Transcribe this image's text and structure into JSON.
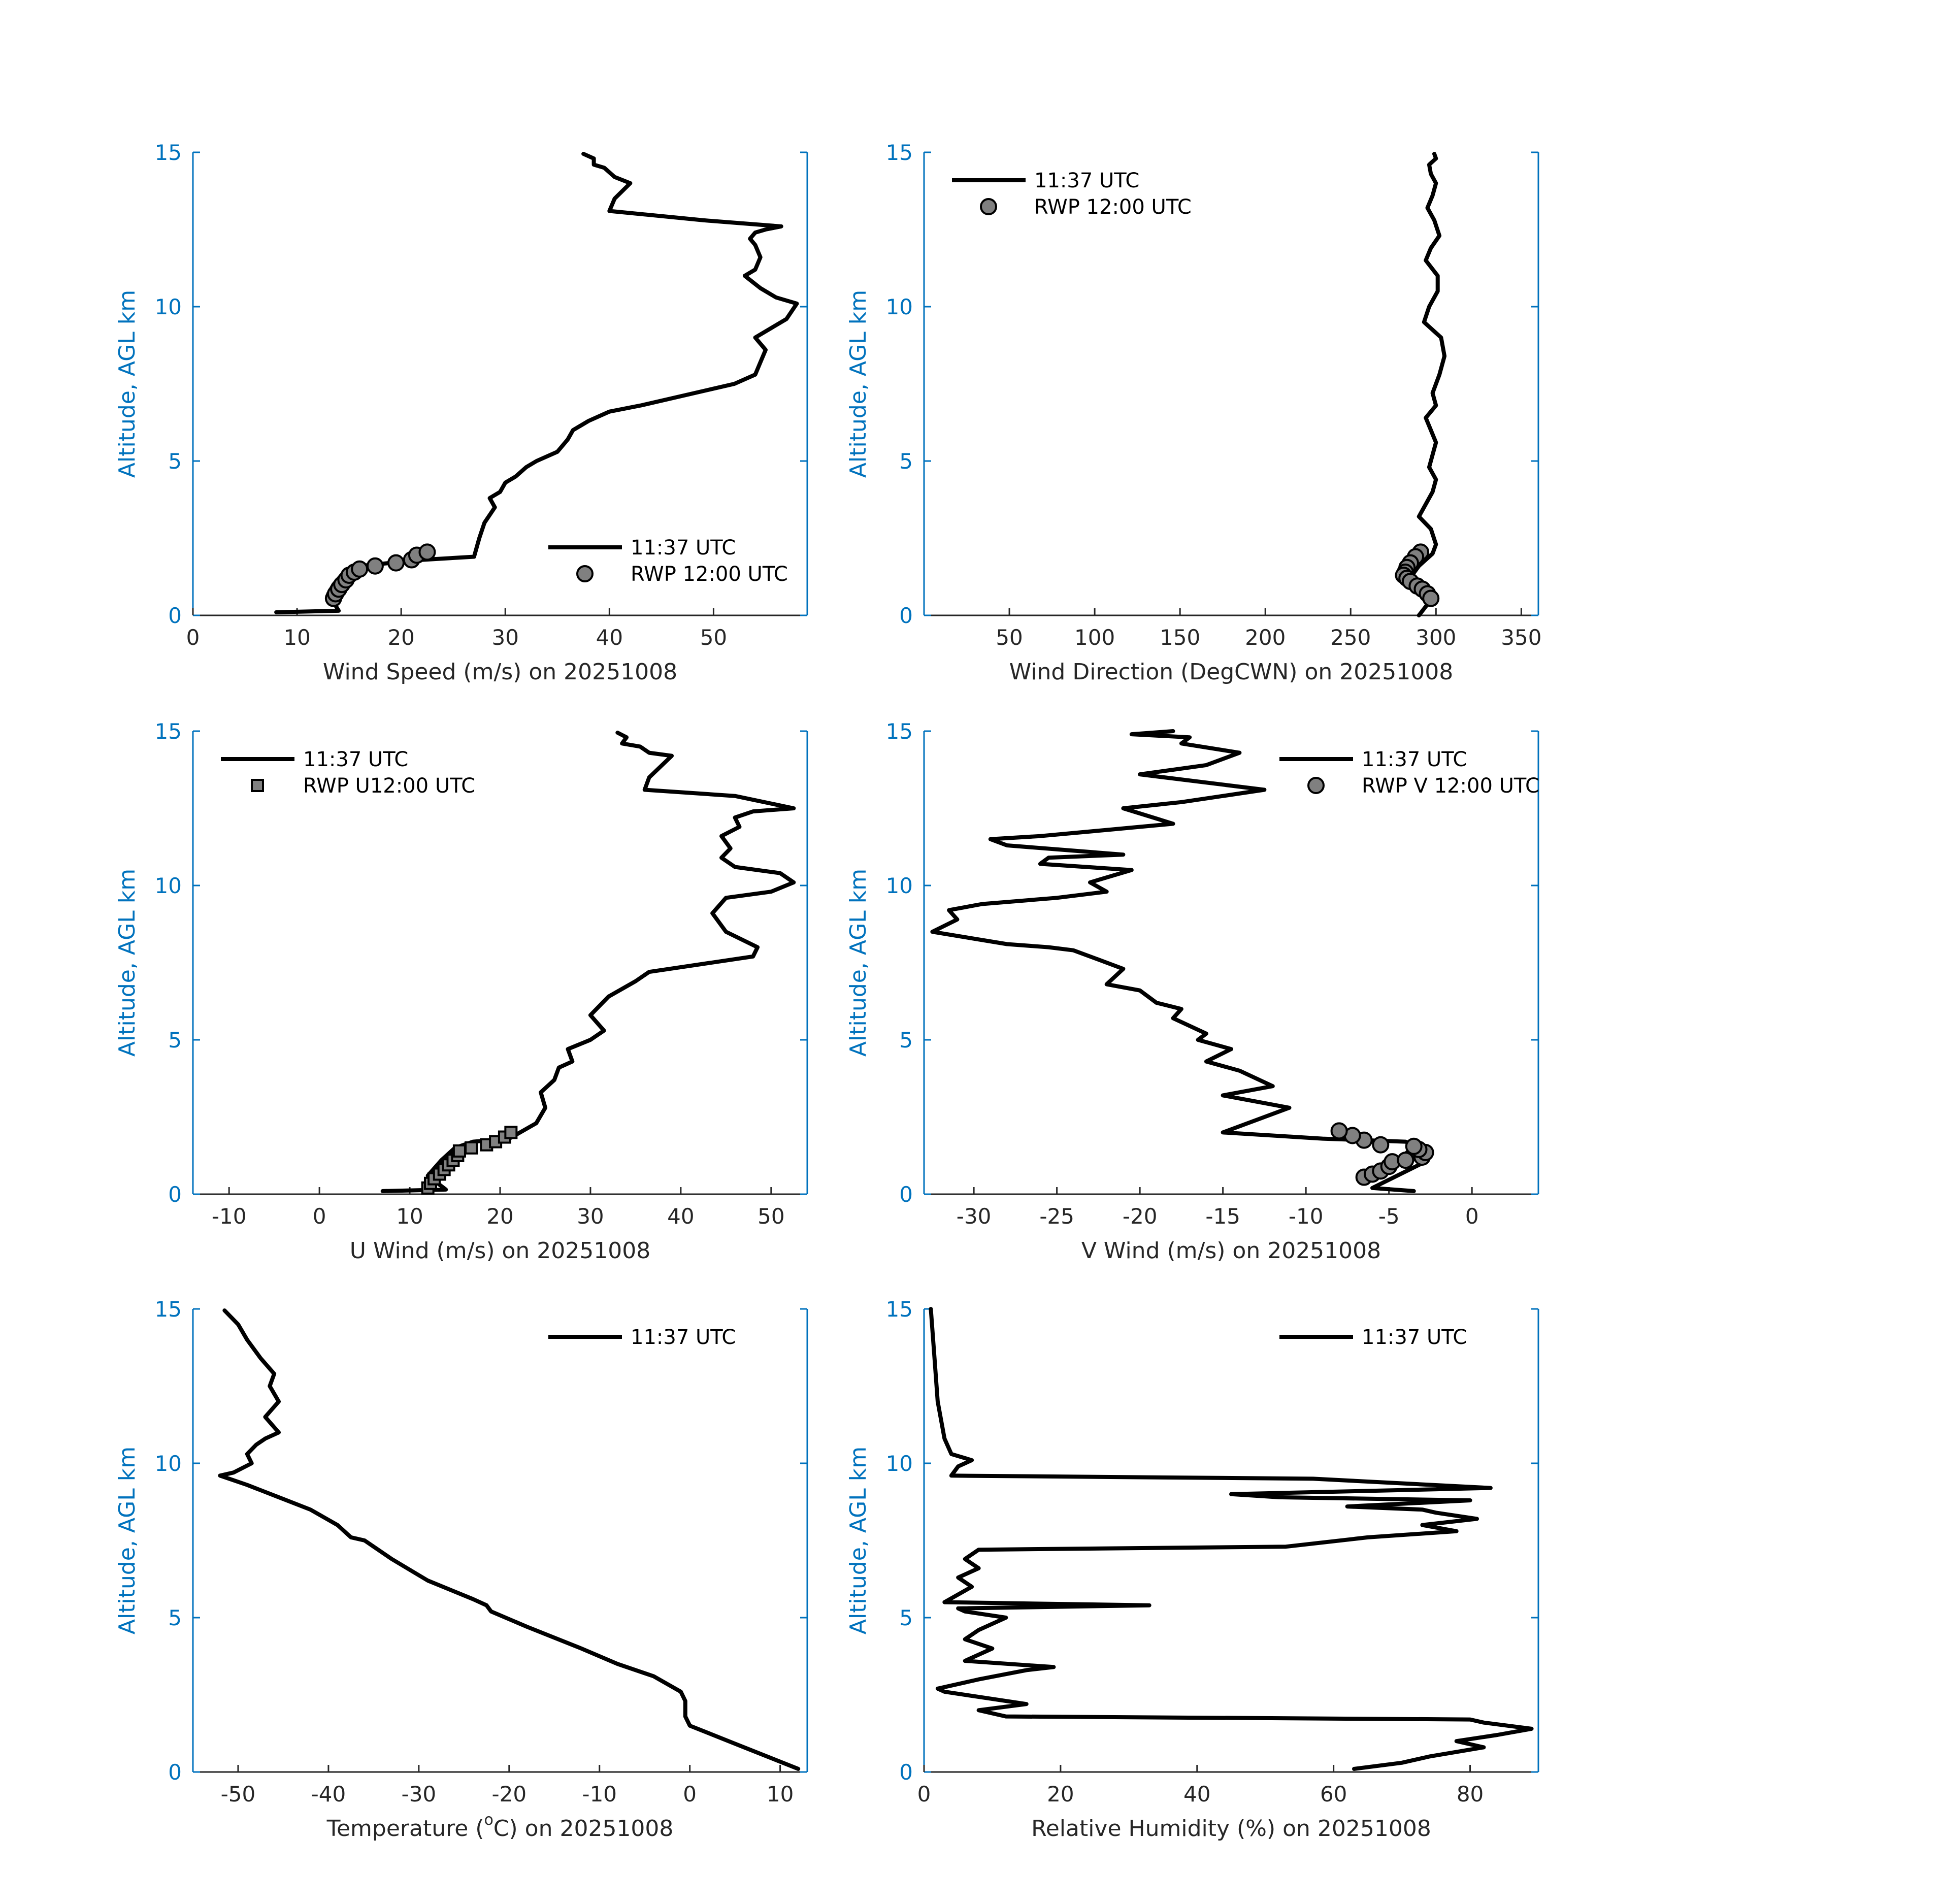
{
  "colors": {
    "axis_y": "#0072BD",
    "axis_x": "#262626",
    "profile_line": "#000000",
    "rwp_marker_fill": "#808080"
  },
  "chart_data": [
    {
      "type": "line",
      "xlabel": "Wind Speed (m/s) on 20251008",
      "ylabel": "Altitude, AGL km",
      "xlim": [
        0,
        59
      ],
      "ylim": [
        0,
        15
      ],
      "xticks": [
        0,
        10,
        20,
        30,
        40,
        50
      ],
      "yticks": [
        0,
        5,
        10,
        15
      ],
      "legend": "bottom-right",
      "series": [
        {
          "name": "11:37 UTC",
          "kind": "line",
          "x": [
            8,
            14,
            13,
            13.5,
            14.5,
            16,
            22,
            27,
            27.5,
            28,
            29,
            28.5,
            29.5,
            30,
            31,
            32,
            33,
            35,
            36,
            36.5,
            38,
            40,
            43,
            52,
            54,
            54.5,
            55,
            54,
            57,
            58,
            56,
            54.5,
            53,
            54,
            54.5,
            54,
            53.5,
            54,
            55,
            56.5,
            49,
            40,
            40.5,
            42,
            40.5,
            39.5,
            38.5,
            38.5,
            37.5
          ],
          "y": [
            0.1,
            0.15,
            0.7,
            1,
            1.4,
            1.6,
            1.8,
            1.9,
            2.5,
            3.0,
            3.5,
            3.8,
            4.0,
            4.3,
            4.5,
            4.8,
            5.0,
            5.3,
            5.7,
            6.0,
            6.3,
            6.6,
            6.8,
            7.5,
            7.8,
            8.2,
            8.6,
            9.0,
            9.6,
            10.1,
            10.3,
            10.6,
            11.0,
            11.2,
            11.6,
            12.0,
            12.2,
            12.4,
            12.5,
            12.6,
            12.8,
            13.1,
            13.5,
            14.0,
            14.2,
            14.5,
            14.6,
            14.8,
            14.95
          ]
        },
        {
          "name": "RWP 12:00 UTC",
          "kind": "circle",
          "x": [
            13.5,
            13.7,
            14,
            14.3,
            14.7,
            15,
            15.5,
            16,
            17.5,
            19.5,
            21,
            21.5,
            22.5
          ],
          "y": [
            0.55,
            0.7,
            0.85,
            1.0,
            1.15,
            1.3,
            1.4,
            1.5,
            1.6,
            1.7,
            1.8,
            1.95,
            2.05
          ]
        }
      ]
    },
    {
      "type": "line",
      "xlabel": "Wind Direction (DegCWN) on 20251008",
      "ylabel": "Altitude, AGL km",
      "xlim": [
        0,
        360
      ],
      "ylim": [
        0,
        15
      ],
      "xticks": [
        50,
        100,
        150,
        200,
        250,
        300,
        350
      ],
      "yticks": [
        0,
        5,
        10,
        15
      ],
      "legend": "top-left",
      "series": [
        {
          "name": "11:37 UTC",
          "kind": "line",
          "x": [
            290,
            297,
            293,
            286,
            290,
            298,
            300,
            297,
            290,
            294,
            298,
            300,
            296,
            298,
            300,
            297,
            294,
            300,
            298,
            302,
            305,
            303,
            293,
            296,
            301,
            301,
            294,
            297,
            302,
            299,
            295,
            298,
            300,
            297,
            296,
            300,
            299
          ],
          "y": [
            0,
            0.5,
            1.0,
            1.3,
            1.6,
            2.0,
            2.3,
            2.8,
            3.2,
            3.6,
            4.0,
            4.4,
            4.8,
            5.2,
            5.6,
            6.0,
            6.4,
            6.8,
            7.2,
            7.8,
            8.4,
            9.0,
            9.5,
            10.0,
            10.5,
            11.0,
            11.5,
            11.9,
            12.3,
            12.8,
            13.2,
            13.6,
            14.0,
            14.3,
            14.6,
            14.8,
            14.95
          ]
        },
        {
          "name": "RWP 12:00 UTC",
          "kind": "circle",
          "x": [
            291,
            288,
            285,
            283,
            282,
            281,
            283,
            285,
            289,
            292,
            295,
            297
          ],
          "y": [
            2.05,
            1.9,
            1.7,
            1.55,
            1.4,
            1.3,
            1.2,
            1.1,
            0.95,
            0.85,
            0.7,
            0.55
          ]
        }
      ]
    },
    {
      "type": "line",
      "xlabel": "U Wind (m/s) on 20251008",
      "ylabel": "Altitude, AGL km",
      "xlim": [
        -14,
        54
      ],
      "ylim": [
        0,
        15
      ],
      "xticks": [
        -10,
        0,
        10,
        20,
        30,
        40,
        50
      ],
      "yticks": [
        0,
        5,
        10,
        15
      ],
      "legend": "top-left",
      "series": [
        {
          "name": "11:37 UTC",
          "kind": "line",
          "x": [
            7,
            14,
            12,
            13.5,
            15,
            17,
            21,
            24,
            25,
            24.5,
            26,
            26.5,
            28,
            27.5,
            30,
            31.5,
            30,
            32,
            35,
            36.5,
            48,
            48.5,
            45,
            43.5,
            45,
            50,
            52.5,
            51,
            46,
            44.5,
            45.5,
            44.5,
            46.5,
            46,
            48,
            52.5,
            46,
            36,
            36.5,
            39,
            36.5,
            35.5,
            33.5,
            34,
            33
          ],
          "y": [
            0.1,
            0.15,
            0.6,
            1.1,
            1.5,
            1.7,
            1.8,
            2.3,
            2.8,
            3.3,
            3.7,
            4.1,
            4.3,
            4.7,
            5.0,
            5.3,
            5.8,
            6.4,
            6.9,
            7.2,
            7.7,
            8.0,
            8.5,
            9.1,
            9.6,
            9.8,
            10.1,
            10.4,
            10.6,
            10.9,
            11.2,
            11.6,
            11.9,
            12.2,
            12.4,
            12.5,
            12.9,
            13.1,
            13.5,
            14.2,
            14.3,
            14.5,
            14.6,
            14.8,
            14.95
          ]
        },
        {
          "name": "RWP U12:00 UTC",
          "kind": "square",
          "x": [
            12,
            12.3,
            12.7,
            13.3,
            13.8,
            14.3,
            14.8,
            15.3,
            15.5,
            16.8,
            18.5,
            19.5,
            20.5,
            21.2
          ],
          "y": [
            0.2,
            0.35,
            0.5,
            0.65,
            0.8,
            0.95,
            1.1,
            1.25,
            1.4,
            1.5,
            1.6,
            1.7,
            1.85,
            2.0
          ]
        }
      ]
    },
    {
      "type": "line",
      "xlabel": "V Wind (m/s) on 20251008",
      "ylabel": "Altitude, AGL km",
      "xlim": [
        -33,
        4
      ],
      "ylim": [
        0,
        15
      ],
      "xticks": [
        -30,
        -25,
        -20,
        -15,
        -10,
        -5,
        0
      ],
      "yticks": [
        0,
        5,
        10,
        15
      ],
      "legend": "top-right",
      "series": [
        {
          "name": "11:37 UTC",
          "kind": "line",
          "x": [
            -3.5,
            -6,
            -4.5,
            -3,
            -4,
            -3.5,
            -4,
            -9,
            -15,
            -11,
            -13,
            -15,
            -12,
            -14,
            -16,
            -14.5,
            -16.5,
            -16,
            -18,
            -17.5,
            -19,
            -20,
            -22,
            -21,
            -22.5,
            -24,
            -25.5,
            -28,
            -32.5,
            -31,
            -31.5,
            -29.5,
            -25,
            -22,
            -23,
            -20.5,
            -26,
            -25.5,
            -21,
            -28,
            -29,
            -26,
            -22,
            -20,
            -18,
            -21,
            -17.5,
            -15,
            -12.5,
            -20,
            -16,
            -14,
            -17.5,
            -17,
            -20.5,
            -18
          ],
          "y": [
            0.1,
            0.2,
            0.6,
            1.0,
            1.3,
            1.6,
            1.7,
            1.8,
            2.0,
            2.8,
            3.0,
            3.2,
            3.5,
            4.0,
            4.3,
            4.7,
            5.0,
            5.2,
            5.7,
            6.0,
            6.2,
            6.6,
            6.8,
            7.3,
            7.6,
            7.9,
            8.0,
            8.1,
            8.5,
            8.9,
            9.2,
            9.4,
            9.6,
            9.8,
            10.1,
            10.5,
            10.7,
            10.9,
            11.0,
            11.3,
            11.5,
            11.6,
            11.8,
            11.9,
            12.0,
            12.5,
            12.7,
            12.9,
            13.1,
            13.6,
            13.9,
            14.3,
            14.6,
            14.8,
            14.9,
            15.0
          ]
        },
        {
          "name": "RWP V 12:00 UTC",
          "kind": "circle",
          "x": [
            -6.5,
            -6,
            -5.5,
            -5,
            -4.8,
            -4,
            -3,
            -2.8,
            -3.2,
            -3.5,
            -5.5,
            -6.5,
            -7.2,
            -8
          ],
          "y": [
            0.55,
            0.65,
            0.75,
            0.9,
            1.05,
            1.1,
            1.2,
            1.35,
            1.45,
            1.55,
            1.6,
            1.75,
            1.9,
            2.05
          ]
        }
      ]
    },
    {
      "type": "line",
      "xlabel_prefix": "Temperature (",
      "xlabel_sup": "o",
      "xlabel_suffix": "C) on 20251008",
      "ylabel": "Altitude, AGL km",
      "xlim": [
        -55,
        13
      ],
      "ylim": [
        0,
        15
      ],
      "xticks": [
        -50,
        -40,
        -30,
        -20,
        -10,
        0,
        10
      ],
      "yticks": [
        0,
        5,
        10,
        15
      ],
      "legend": "top-right",
      "series": [
        {
          "name": "11:37 UTC",
          "kind": "line",
          "x": [
            12,
            6,
            0,
            -0.5,
            -0.5,
            -1,
            -4,
            -8,
            -12,
            -18,
            -22,
            -22.5,
            -24,
            -29,
            -33,
            -36,
            -37.5,
            -39,
            -42,
            -45.5,
            -49,
            -52,
            -50.5,
            -48.5,
            -49,
            -48,
            -47,
            -45.5,
            -47,
            -45.5,
            -46.5,
            -46,
            -47.5,
            -49,
            -50,
            -51.5
          ],
          "y": [
            0.1,
            0.8,
            1.5,
            1.8,
            2.3,
            2.6,
            3.1,
            3.5,
            4.0,
            4.7,
            5.2,
            5.4,
            5.6,
            6.2,
            6.9,
            7.5,
            7.6,
            8.0,
            8.5,
            8.9,
            9.3,
            9.6,
            9.7,
            10.0,
            10.3,
            10.6,
            10.8,
            11.0,
            11.5,
            12.0,
            12.5,
            12.9,
            13.4,
            14.0,
            14.5,
            14.95
          ]
        }
      ]
    },
    {
      "type": "line",
      "xlabel": "Relative Humidity (%) on 20251008",
      "ylabel": "Altitude, AGL km",
      "xlim": [
        0,
        90
      ],
      "ylim": [
        0,
        15
      ],
      "xticks": [
        0,
        20,
        40,
        60,
        80
      ],
      "yticks": [
        0,
        5,
        10,
        15
      ],
      "legend": "top-right",
      "series": [
        {
          "name": "11:37 UTC",
          "kind": "line",
          "x": [
            63,
            70,
            74,
            82,
            78,
            84,
            89,
            82,
            80,
            12,
            8,
            15,
            9,
            3,
            2,
            8,
            15,
            19,
            6,
            10,
            6,
            8,
            12,
            6,
            5,
            33,
            3,
            7,
            5,
            8,
            6,
            8,
            53,
            65,
            78,
            73,
            81,
            75,
            73,
            62,
            80,
            52,
            45,
            83,
            57,
            4,
            5,
            7,
            4,
            3,
            2,
            1.5,
            1
          ],
          "y": [
            0.1,
            0.3,
            0.5,
            0.8,
            1.0,
            1.2,
            1.4,
            1.6,
            1.7,
            1.8,
            2.0,
            2.2,
            2.4,
            2.6,
            2.7,
            3.0,
            3.3,
            3.4,
            3.6,
            4.0,
            4.3,
            4.6,
            5.0,
            5.2,
            5.3,
            5.4,
            5.5,
            6.0,
            6.3,
            6.6,
            6.9,
            7.2,
            7.3,
            7.6,
            7.8,
            8.0,
            8.2,
            8.4,
            8.5,
            8.6,
            8.8,
            8.9,
            9.0,
            9.2,
            9.5,
            9.6,
            9.9,
            10.1,
            10.3,
            10.8,
            12.0,
            13.5,
            15.0
          ]
        }
      ]
    }
  ]
}
